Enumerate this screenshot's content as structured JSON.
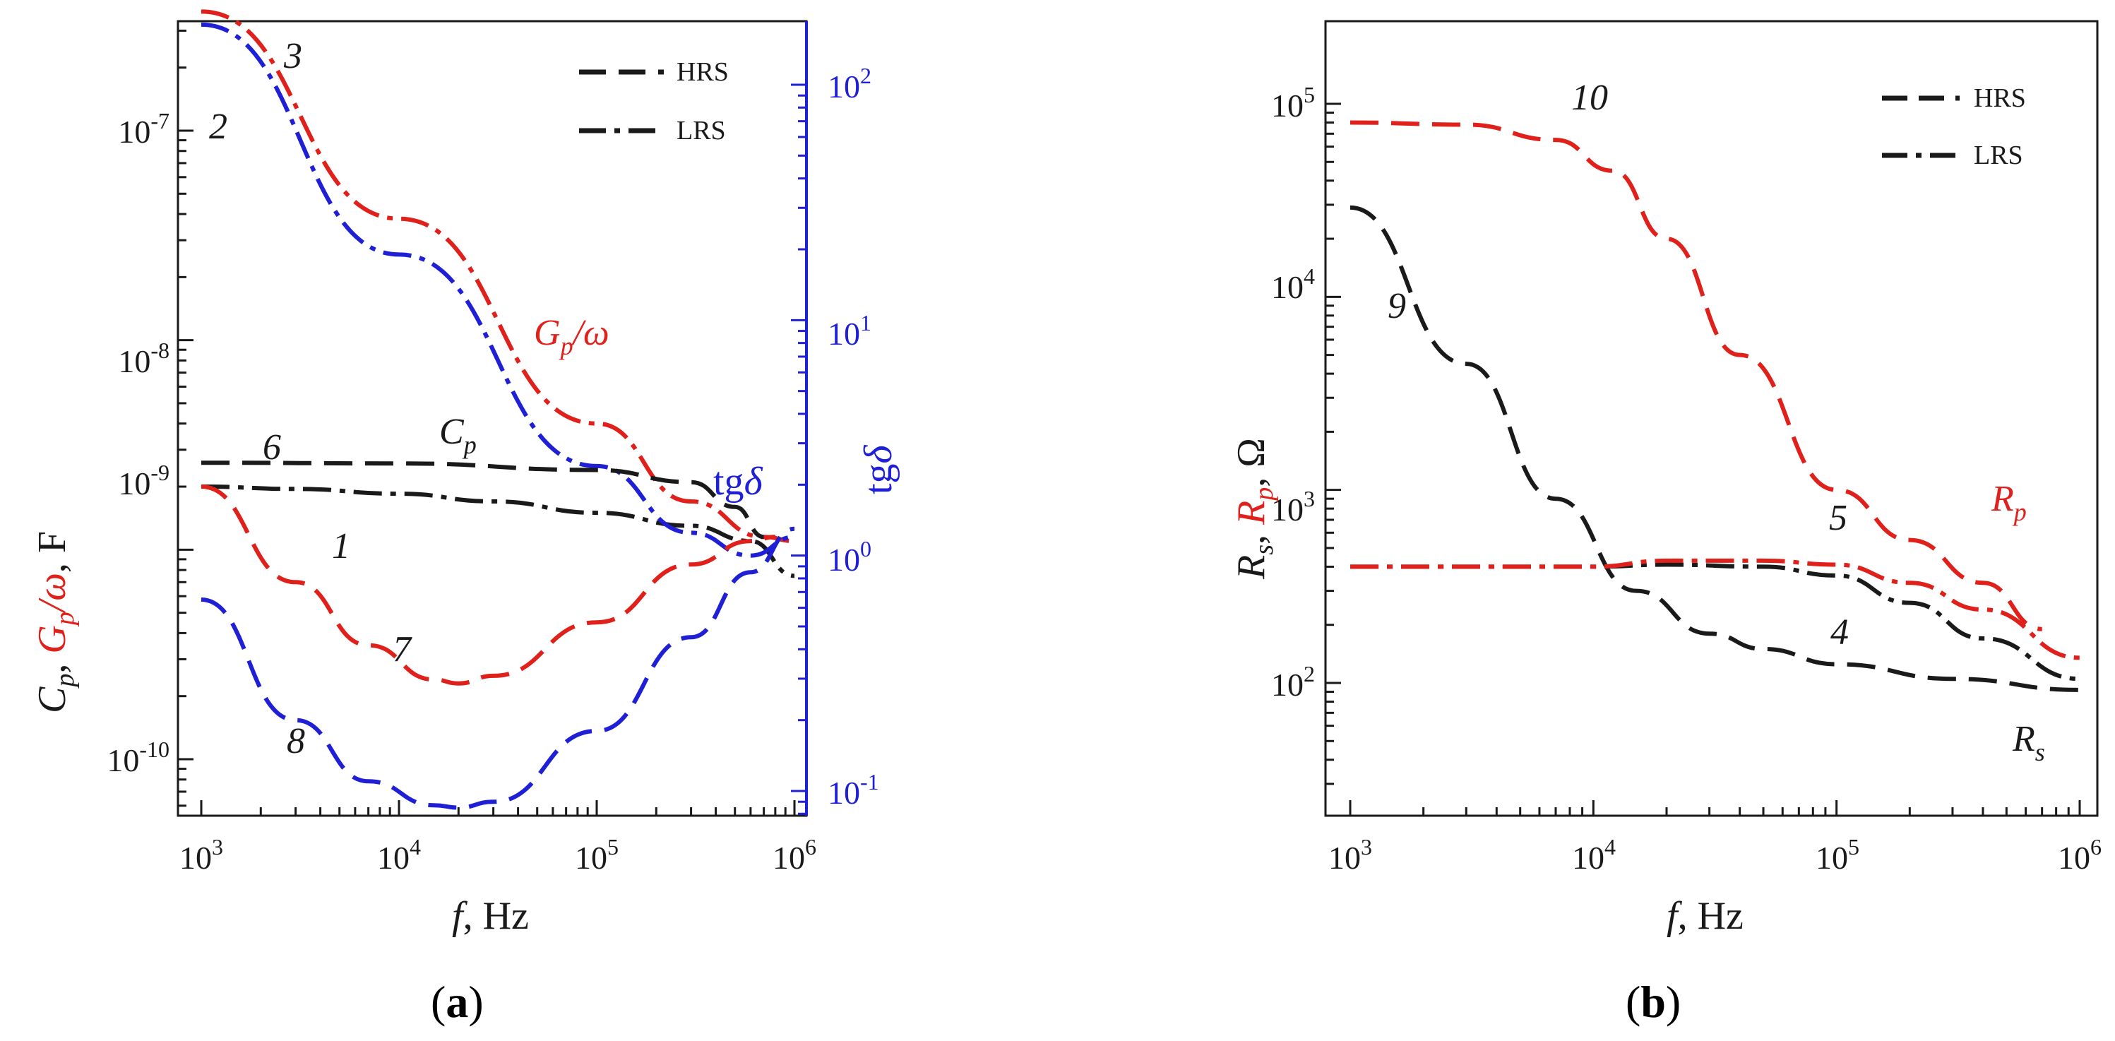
{
  "colors": {
    "black": "#1a1a1a",
    "red": "#e0201b",
    "blue": "#1f1fd6"
  },
  "chart_data": [
    {
      "id": "a",
      "type": "line",
      "caption": {
        "open": "(",
        "letter": "a",
        "close": ")"
      },
      "x": {
        "label_var": "f",
        "label_unit": ", Hz",
        "scale": "log",
        "lim": [
          800,
          1200000
        ],
        "ticks": [
          {
            "base": "10",
            "exp": "3"
          },
          {
            "base": "10",
            "exp": "4"
          },
          {
            "base": "10",
            "exp": "5"
          },
          {
            "base": "10",
            "exp": "6"
          }
        ]
      },
      "y_left": {
        "label": "Cp, Gp/ω, F",
        "scale": "log",
        "lim": [
          5e-11,
          5e-07
        ],
        "ticks": [
          {
            "base": "10",
            "exp": "-10"
          },
          {
            "base": "10",
            "exp": "-9"
          },
          {
            "base": "10",
            "exp": "-8"
          },
          {
            "base": "10",
            "exp": "-7"
          }
        ]
      },
      "y_right": {
        "label": "tgδ",
        "scale": "log",
        "lim": [
          0.08,
          170
        ],
        "ticks": [
          {
            "base": "10",
            "exp": "-1"
          },
          {
            "base": "10",
            "exp": "0"
          },
          {
            "base": "10",
            "exp": "1"
          },
          {
            "base": "10",
            "exp": "2"
          }
        ]
      },
      "legend": {
        "position": "top-right",
        "items": [
          {
            "label": "HRS",
            "style": "dash"
          },
          {
            "label": "LRS",
            "style": "dashdot"
          }
        ]
      },
      "series": [
        {
          "num": "1",
          "name": "Cp LRS",
          "axis": "left",
          "color": "black",
          "style": "dashdot",
          "x": [
            1000,
            3000,
            10000,
            30000,
            100000,
            300000,
            600000,
            1000000
          ],
          "y": [
            2e-09,
            1.95e-09,
            1.85e-09,
            1.7e-09,
            1.5e-09,
            1.3e-09,
            1.1e-09,
            7.5e-10
          ]
        },
        {
          "num": "2",
          "name": "Gp/ω LRS",
          "axis": "left",
          "color": "red",
          "style": "dashdot",
          "x": [
            1000,
            10000,
            100000,
            300000,
            700000,
            1000000
          ],
          "y": [
            3.7e-07,
            3.8e-08,
            4e-09,
            1.7e-09,
            1.15e-09,
            1.1e-09
          ]
        },
        {
          "num": "3",
          "name": "tgδ LRS",
          "axis": "right",
          "color": "blue",
          "style": "dashdot",
          "x": [
            1000,
            10000,
            100000,
            300000,
            600000,
            1000000
          ],
          "y": [
            180,
            19,
            2.4,
            1.25,
            1.0,
            1.2
          ]
        },
        {
          "num": "6",
          "name": "Cp HRS",
          "axis": "left",
          "color": "black",
          "style": "dash",
          "x": [
            1000,
            10000,
            100000,
            300000,
            500000,
            700000
          ],
          "y": [
            2.6e-09,
            2.58e-09,
            2.4e-09,
            2.1e-09,
            1.6e-09,
            1.15e-09
          ]
        },
        {
          "num": "7",
          "name": "Gp/ω HRS",
          "axis": "left",
          "color": "red",
          "style": "dash",
          "x": [
            1000,
            3000,
            7000,
            15000,
            20000,
            30000,
            100000,
            300000,
            600000,
            800000
          ],
          "y": [
            2e-09,
            7e-10,
            3.5e-10,
            2.4e-10,
            2.3e-10,
            2.5e-10,
            4.5e-10,
            8.5e-10,
            1.1e-09,
            1.15e-09
          ]
        },
        {
          "num": "8",
          "name": "tgδ HRS",
          "axis": "right",
          "color": "blue",
          "style": "dash",
          "x": [
            1000,
            3000,
            7000,
            15000,
            20000,
            30000,
            100000,
            300000,
            600000,
            1000000
          ],
          "y": [
            0.65,
            0.2,
            0.11,
            0.087,
            0.085,
            0.09,
            0.18,
            0.45,
            0.85,
            1.3
          ]
        }
      ],
      "annotations": [
        {
          "text": "3",
          "color": "black",
          "italic": true
        },
        {
          "text": "2",
          "color": "black",
          "italic": true
        },
        {
          "text": "6",
          "color": "black",
          "italic": true
        },
        {
          "text": "1",
          "color": "black",
          "italic": true
        },
        {
          "text": "7",
          "color": "black",
          "italic": true
        },
        {
          "text": "8",
          "color": "black",
          "italic": true
        },
        {
          "text": "C",
          "sub": "p",
          "color": "black",
          "italic": true
        },
        {
          "text": "G",
          "sub": "p",
          "tail": "/ω",
          "color": "red",
          "italic": true
        },
        {
          "text": "tg",
          "tail": "δ",
          "color": "blue",
          "italic": false
        }
      ]
    },
    {
      "id": "b",
      "type": "line",
      "caption": {
        "open": "(",
        "letter": "b",
        "close": ")"
      },
      "x": {
        "label_var": "f",
        "label_unit": ", Hz",
        "scale": "log",
        "lim": [
          800,
          1200000
        ],
        "ticks": [
          {
            "base": "10",
            "exp": "3"
          },
          {
            "base": "10",
            "exp": "4"
          },
          {
            "base": "10",
            "exp": "5"
          },
          {
            "base": "10",
            "exp": "6"
          }
        ]
      },
      "y": {
        "label": "Rs, Rp, Ω",
        "scale": "log",
        "lim": [
          20,
          200000
        ],
        "ticks": [
          {
            "base": "10",
            "exp": "2"
          },
          {
            "base": "10",
            "exp": "3"
          },
          {
            "base": "10",
            "exp": "4"
          },
          {
            "base": "10",
            "exp": "5"
          }
        ]
      },
      "legend": {
        "position": "top-right",
        "items": [
          {
            "label": "HRS",
            "style": "dash"
          },
          {
            "label": "LRS",
            "style": "dashdot"
          }
        ]
      },
      "series": [
        {
          "num": "9",
          "name": "Rs HRS",
          "color": "black",
          "style": "dash",
          "x": [
            1000,
            3000,
            7000,
            15000,
            30000,
            50000,
            100000,
            300000,
            1000000
          ],
          "y": [
            29000,
            4500,
            900,
            300,
            180,
            150,
            125,
            105,
            92
          ]
        },
        {
          "num": "10",
          "name": "Rp HRS",
          "color": "red",
          "style": "dash",
          "x": [
            1000,
            3000,
            7000,
            12000,
            20000,
            40000,
            100000,
            200000,
            400000,
            700000
          ],
          "y": [
            80000,
            78000,
            65000,
            45000,
            20000,
            5000,
            1000,
            550,
            330,
            190
          ]
        },
        {
          "num": "4",
          "name": "Rs LRS",
          "color": "black",
          "style": "dashdot",
          "x": [
            1000,
            10000,
            20000,
            50000,
            100000,
            200000,
            400000,
            1000000
          ],
          "y": [
            400,
            400,
            410,
            400,
            360,
            260,
            170,
            105
          ]
        },
        {
          "num": "5",
          "name": "Rp LRS",
          "color": "red",
          "style": "dashdot",
          "x": [
            1000,
            10000,
            20000,
            50000,
            100000,
            200000,
            400000,
            1000000
          ],
          "y": [
            400,
            400,
            430,
            430,
            410,
            330,
            240,
            135
          ]
        }
      ],
      "annotations": [
        {
          "text": "10",
          "color": "black",
          "italic": true
        },
        {
          "text": "9",
          "color": "black",
          "italic": true
        },
        {
          "text": "5",
          "color": "black",
          "italic": true
        },
        {
          "text": "4",
          "color": "black",
          "italic": true
        },
        {
          "text": "R",
          "sub": "p",
          "color": "red",
          "italic": true
        },
        {
          "text": "R",
          "sub": "s",
          "color": "black",
          "italic": true
        }
      ]
    }
  ]
}
